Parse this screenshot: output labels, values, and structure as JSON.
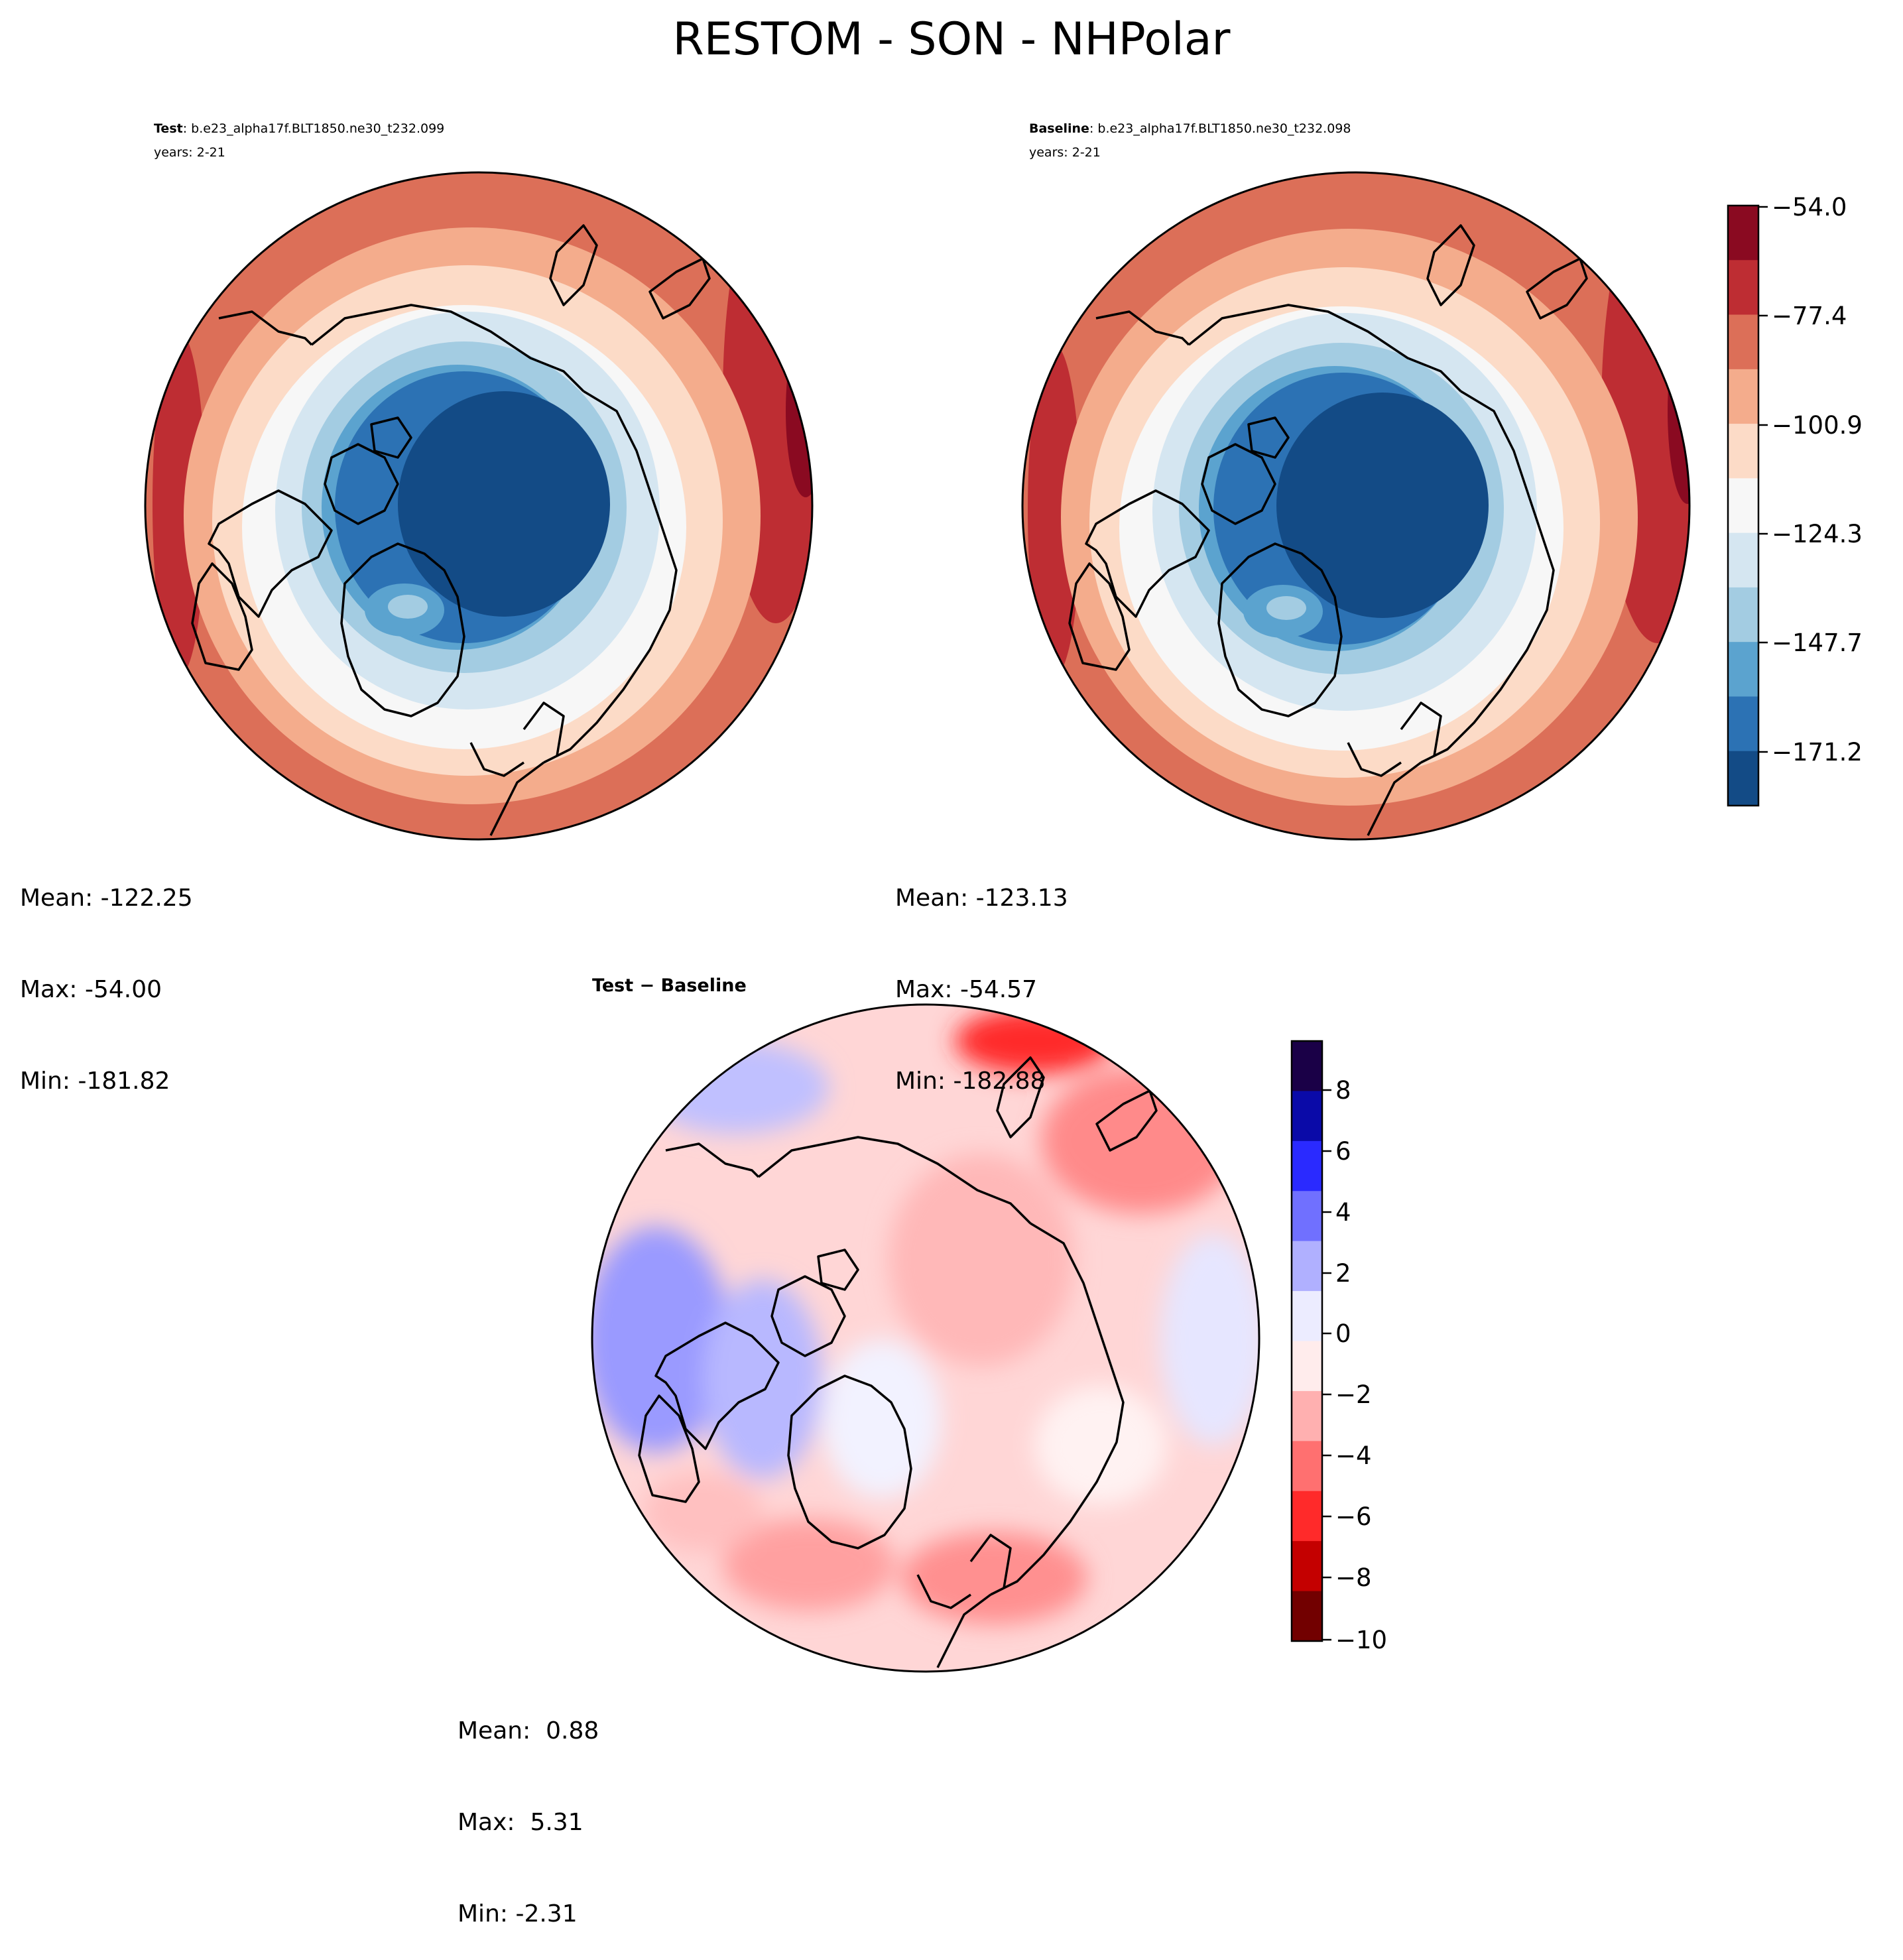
{
  "title": "RESTOM - SON - NHPolar",
  "panels": {
    "test": {
      "label_bold": "Test",
      "label_rest": ": b.e23_alpha17f.BLT1850.ne30_t232.099",
      "years": "years: 2-21",
      "stats": {
        "mean": "Mean: -122.25",
        "max": "Max: -54.00",
        "min": "Min: -181.82"
      }
    },
    "baseline": {
      "label_bold": "Baseline",
      "label_rest": ": b.e23_alpha17f.BLT1850.ne30_t232.098",
      "years": "years: 2-21",
      "stats": {
        "mean": "Mean: -123.13",
        "max": "Max: -54.57",
        "min": "Min: -182.88"
      }
    },
    "diff": {
      "label": "Test − Baseline",
      "stats": {
        "mean": "Mean:  0.88",
        "max": "Max:  5.31",
        "min": "Min: -2.31"
      }
    }
  },
  "colorbar_main": {
    "ticks": [
      "−54.0",
      "−77.4",
      "−100.9",
      "−124.3",
      "−147.7",
      "−171.2"
    ],
    "colors": [
      "#8a0a21",
      "#be2d33",
      "#dc6f58",
      "#f4ac8c",
      "#fcdbc7",
      "#f7f7f7",
      "#d5e6f1",
      "#a3cce2",
      "#5ba3cf",
      "#2c72b4",
      "#134b86"
    ]
  },
  "colorbar_diff": {
    "ticks": [
      "8",
      "6",
      "4",
      "2",
      "0",
      "−2",
      "−4",
      "−6",
      "−8",
      "−10"
    ],
    "colors": [
      "#1a0047",
      "#0a0aa8",
      "#2a2aff",
      "#7070ff",
      "#b0b0ff",
      "#ececff",
      "#ffecec",
      "#ffb0b0",
      "#ff7070",
      "#ff2a2a",
      "#c40000",
      "#720000"
    ]
  }
}
